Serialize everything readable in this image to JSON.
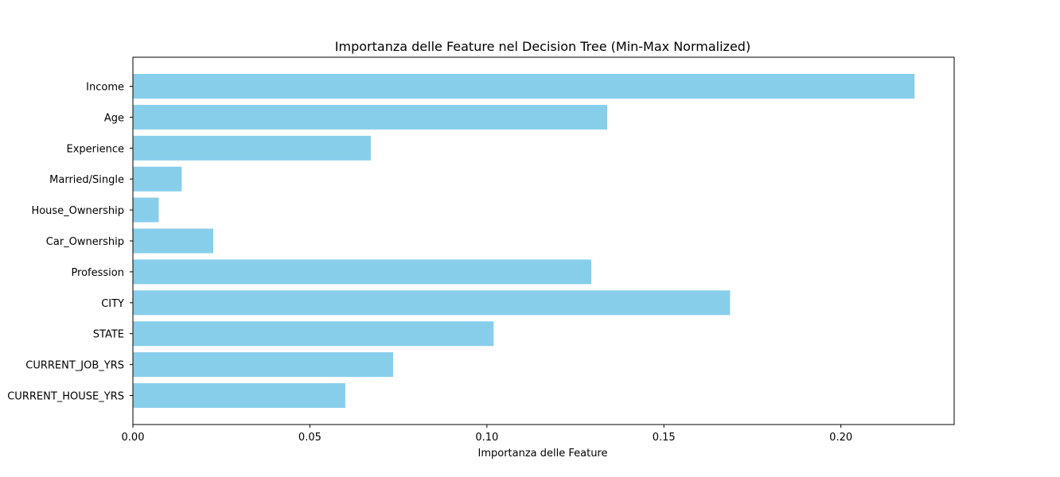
{
  "chart_data": {
    "type": "bar",
    "orientation": "horizontal",
    "title": "Importanza delle Feature nel Decision Tree (Min-Max Normalized)",
    "xlabel": "Importanza delle Feature",
    "ylabel": "",
    "xlim": [
      0,
      0.232
    ],
    "xticks": [
      0.0,
      0.05,
      0.1,
      0.15,
      0.2
    ],
    "xtick_labels": [
      "0.00",
      "0.05",
      "0.10",
      "0.15",
      "0.20"
    ],
    "categories": [
      "Income",
      "Age",
      "Experience",
      "Married/Single",
      "House_Ownership",
      "Car_Ownership",
      "Profession",
      "CITY",
      "STATE",
      "CURRENT_JOB_YRS",
      "CURRENT_HOUSE_YRS"
    ],
    "values": [
      0.2208,
      0.134,
      0.0672,
      0.0138,
      0.0073,
      0.0227,
      0.1295,
      0.1687,
      0.1019,
      0.0735,
      0.06
    ],
    "color": "#87ceeb",
    "grid": false
  }
}
